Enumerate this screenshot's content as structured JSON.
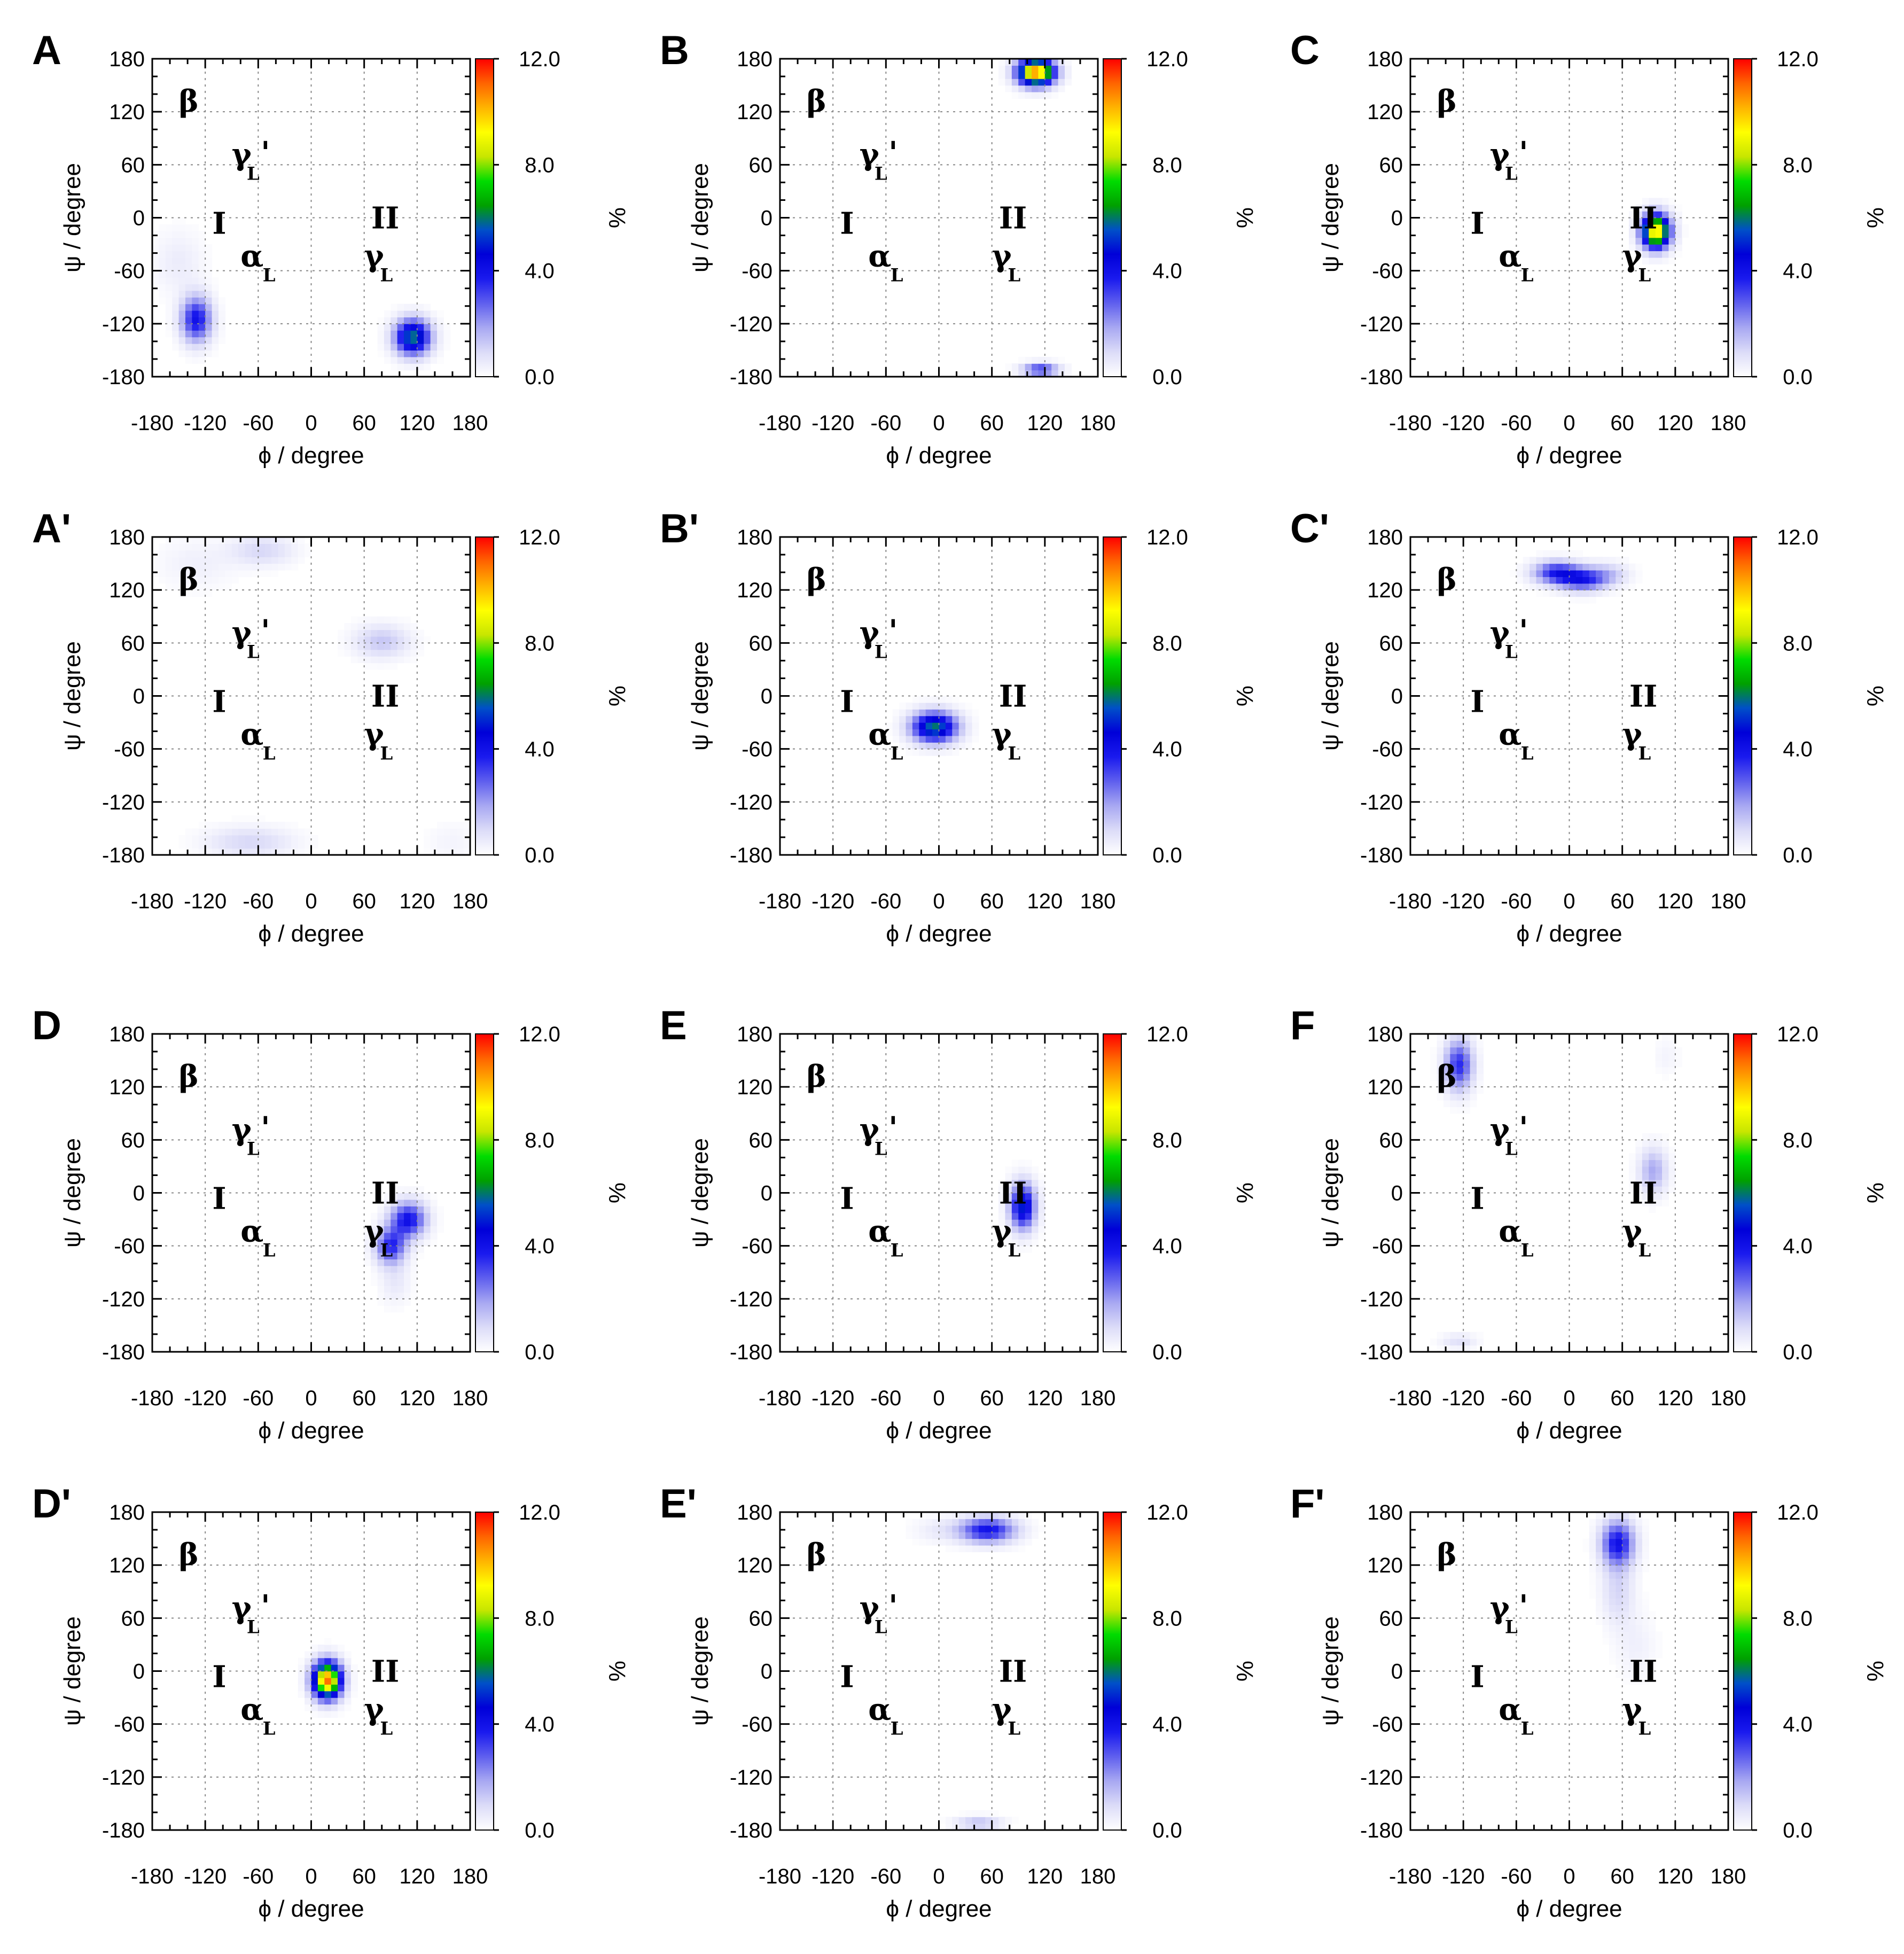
{
  "axis_text": {
    "x_label": "ϕ / degree",
    "y_label": "ψ / degree",
    "cbar_unit": "%"
  },
  "region_labels": {
    "beta": "β",
    "gamma_prime": "γ",
    "gamma_prime_sub": "L",
    "gamma_prime_mark": "'",
    "I": "I",
    "II": "II",
    "alpha": "α",
    "alpha_sub": "L",
    "gamma": "γ",
    "gamma_sub": "L"
  },
  "colorbar": {
    "ticks": [
      "12.0",
      "8.0",
      "4.0",
      "0.0"
    ],
    "colors": [
      "#ffffff",
      "#dcdcf8",
      "#a8a8f2",
      "#5f5fee",
      "#1a1aee",
      "#0000d8",
      "#0050c8",
      "#00a000",
      "#00dc00",
      "#c8e600",
      "#ffff00",
      "#ffb400",
      "#ff6400",
      "#ff0000"
    ]
  },
  "chart_data": [
    {
      "id": "A",
      "type": "heatmap",
      "title": "A",
      "xlabel": "ϕ / degree",
      "ylabel": "ψ / degree",
      "xlim": [
        -180,
        180
      ],
      "ylim": [
        -180,
        180
      ],
      "xticks": [
        "-180",
        "-120",
        "-60",
        "0",
        "60",
        "120",
        "180"
      ],
      "yticks": [
        "180",
        "120",
        "60",
        "0",
        "-60",
        "-120",
        "-180"
      ],
      "colorbar": {
        "label": "%",
        "range": [
          0,
          12
        ],
        "ticks": [
          "12.0",
          "8.0",
          "4.0",
          "0.0"
        ]
      },
      "grid": true,
      "hotspots": [
        {
          "phi": -130,
          "psi": -115,
          "sphi": 12,
          "spsi": 18,
          "peak": 4.0
        },
        {
          "phi": 115,
          "psi": -135,
          "sphi": 14,
          "spsi": 14,
          "peak": 6.0
        },
        {
          "phi": -150,
          "psi": -50,
          "sphi": 20,
          "spsi": 25,
          "peak": 0.5
        }
      ]
    },
    {
      "id": "B",
      "type": "heatmap",
      "title": "B",
      "xlabel": "ϕ / degree",
      "ylabel": "ψ / degree",
      "xlim": [
        -180,
        180
      ],
      "ylim": [
        -180,
        180
      ],
      "xticks": [
        "-180",
        "-120",
        "-60",
        "0",
        "60",
        "120",
        "180"
      ],
      "yticks": [
        "180",
        "120",
        "60",
        "0",
        "-60",
        "-120",
        "-180"
      ],
      "colorbar": {
        "label": "%",
        "range": [
          0,
          12
        ],
        "ticks": [
          "12.0",
          "8.0",
          "4.0",
          "0.0"
        ]
      },
      "grid": true,
      "hotspots": [
        {
          "phi": 110,
          "psi": 165,
          "sphi": 14,
          "spsi": 10,
          "peak": 11.0
        },
        {
          "phi": 115,
          "psi": -172,
          "sphi": 14,
          "spsi": 5,
          "peak": 3.5
        }
      ]
    },
    {
      "id": "C",
      "type": "heatmap",
      "title": "C",
      "xlabel": "ϕ / degree",
      "ylabel": "ψ / degree",
      "xlim": [
        -180,
        180
      ],
      "ylim": [
        -180,
        180
      ],
      "xticks": [
        "-180",
        "-120",
        "-60",
        "0",
        "60",
        "120",
        "180"
      ],
      "yticks": [
        "180",
        "120",
        "60",
        "0",
        "-60",
        "-120",
        "-180"
      ],
      "colorbar": {
        "label": "%",
        "range": [
          0,
          12
        ],
        "ticks": [
          "12.0",
          "8.0",
          "4.0",
          "0.0"
        ]
      },
      "grid": true,
      "hotspots": [
        {
          "phi": 98,
          "psi": -15,
          "sphi": 11,
          "spsi": 13,
          "peak": 10.0
        }
      ]
    },
    {
      "id": "A'",
      "type": "heatmap",
      "title": "A'",
      "xlabel": "ϕ / degree",
      "ylabel": "ψ / degree",
      "xlim": [
        -180,
        180
      ],
      "ylim": [
        -180,
        180
      ],
      "xticks": [
        "-180",
        "-120",
        "-60",
        "0",
        "60",
        "120",
        "180"
      ],
      "yticks": [
        "180",
        "120",
        "60",
        "0",
        "-60",
        "-120",
        "-180"
      ],
      "colorbar": {
        "label": "%",
        "range": [
          0,
          12
        ],
        "ticks": [
          "12.0",
          "8.0",
          "4.0",
          "0.0"
        ]
      },
      "grid": true,
      "hotspots": [
        {
          "phi": -55,
          "psi": 165,
          "sphi": 25,
          "spsi": 12,
          "peak": 1.0
        },
        {
          "phi": -70,
          "psi": -165,
          "sphi": 35,
          "spsi": 12,
          "peak": 1.0
        },
        {
          "phi": 80,
          "psi": 62,
          "sphi": 22,
          "spsi": 13,
          "peak": 1.3
        },
        {
          "phi": -130,
          "psi": 150,
          "sphi": 30,
          "spsi": 20,
          "peak": 0.4
        },
        {
          "phi": 160,
          "psi": -165,
          "sphi": 20,
          "spsi": 15,
          "peak": 0.3
        }
      ]
    },
    {
      "id": "B'",
      "type": "heatmap",
      "title": "B'",
      "xlabel": "ϕ / degree",
      "ylabel": "ψ / degree",
      "xlim": [
        -180,
        180
      ],
      "ylim": [
        -180,
        180
      ],
      "xticks": [
        "-180",
        "-120",
        "-60",
        "0",
        "60",
        "120",
        "180"
      ],
      "yticks": [
        "180",
        "120",
        "60",
        "0",
        "-60",
        "-120",
        "-180"
      ],
      "colorbar": {
        "label": "%",
        "range": [
          0,
          12
        ],
        "ticks": [
          "12.0",
          "8.0",
          "4.0",
          "0.0"
        ]
      },
      "grid": true,
      "hotspots": [
        {
          "phi": -5,
          "psi": -35,
          "sphi": 18,
          "spsi": 12,
          "peak": 6.0
        }
      ]
    },
    {
      "id": "C'",
      "type": "heatmap",
      "title": "C'",
      "xlabel": "ϕ / degree",
      "ylabel": "ψ / degree",
      "xlim": [
        -180,
        180
      ],
      "ylim": [
        -180,
        180
      ],
      "xticks": [
        "-180",
        "-120",
        "-60",
        "0",
        "60",
        "120",
        "180"
      ],
      "yticks": [
        "180",
        "120",
        "60",
        "0",
        "-60",
        "-120",
        "-180"
      ],
      "colorbar": {
        "label": "%",
        "range": [
          0,
          12
        ],
        "ticks": [
          "12.0",
          "8.0",
          "4.0",
          "0.0"
        ]
      },
      "grid": true,
      "hotspots": [
        {
          "phi": -15,
          "psi": 140,
          "sphi": 18,
          "spsi": 9,
          "peak": 3.5
        },
        {
          "phi": 15,
          "psi": 132,
          "sphi": 18,
          "spsi": 9,
          "peak": 3.5
        },
        {
          "phi": 45,
          "psi": 138,
          "sphi": 16,
          "spsi": 9,
          "peak": 1.2
        }
      ]
    },
    {
      "id": "D",
      "type": "heatmap",
      "title": "D",
      "xlabel": "ϕ / degree",
      "ylabel": "ψ / degree",
      "xlim": [
        -180,
        180
      ],
      "ylim": [
        -180,
        180
      ],
      "xticks": [
        "-180",
        "-120",
        "-60",
        "0",
        "60",
        "120",
        "180"
      ],
      "yticks": [
        "180",
        "120",
        "60",
        "0",
        "-60",
        "-120",
        "-180"
      ],
      "colorbar": {
        "label": "%",
        "range": [
          0,
          12
        ],
        "ticks": [
          "12.0",
          "8.0",
          "4.0",
          "0.0"
        ]
      },
      "grid": true,
      "hotspots": [
        {
          "phi": 110,
          "psi": -30,
          "sphi": 14,
          "spsi": 14,
          "peak": 4.0
        },
        {
          "phi": 90,
          "psi": -60,
          "sphi": 12,
          "spsi": 14,
          "peak": 3.5
        },
        {
          "phi": 95,
          "psi": -100,
          "sphi": 12,
          "spsi": 18,
          "peak": 0.6
        }
      ]
    },
    {
      "id": "E",
      "type": "heatmap",
      "title": "E",
      "xlabel": "ϕ / degree",
      "ylabel": "ψ / degree",
      "xlim": [
        -180,
        180
      ],
      "ylim": [
        -180,
        180
      ],
      "xticks": [
        "-180",
        "-120",
        "-60",
        "0",
        "60",
        "120",
        "180"
      ],
      "yticks": [
        "180",
        "120",
        "60",
        "0",
        "-60",
        "-120",
        "-180"
      ],
      "colorbar": {
        "label": "%",
        "range": [
          0,
          12
        ],
        "ticks": [
          "12.0",
          "8.0",
          "4.0",
          "0.0"
        ]
      },
      "grid": true,
      "hotspots": [
        {
          "phi": 95,
          "psi": -15,
          "sphi": 10,
          "spsi": 18,
          "peak": 5.0
        }
      ]
    },
    {
      "id": "F",
      "type": "heatmap",
      "title": "F",
      "xlabel": "ϕ / degree",
      "ylabel": "ψ / degree",
      "xlim": [
        -180,
        180
      ],
      "ylim": [
        -180,
        180
      ],
      "xticks": [
        "-180",
        "-120",
        "-60",
        "0",
        "60",
        "120",
        "180"
      ],
      "yticks": [
        "180",
        "120",
        "60",
        "0",
        "-60",
        "-120",
        "-180"
      ],
      "colorbar": {
        "label": "%",
        "range": [
          0,
          12
        ],
        "ticks": [
          "12.0",
          "8.0",
          "4.0",
          "0.0"
        ]
      },
      "grid": true,
      "hotspots": [
        {
          "phi": -125,
          "psi": 145,
          "sphi": 11,
          "spsi": 20,
          "peak": 3.5
        },
        {
          "phi": -125,
          "psi": -168,
          "sphi": 14,
          "spsi": 6,
          "peak": 0.8
        },
        {
          "phi": 95,
          "psi": 25,
          "sphi": 11,
          "spsi": 18,
          "peak": 1.8
        },
        {
          "phi": 110,
          "psi": 155,
          "sphi": 10,
          "spsi": 15,
          "peak": 0.3
        }
      ]
    },
    {
      "id": "D'",
      "type": "heatmap",
      "title": "D'",
      "xlabel": "ϕ / degree",
      "ylabel": "ψ / degree",
      "xlim": [
        -180,
        180
      ],
      "ylim": [
        -180,
        180
      ],
      "xticks": [
        "-180",
        "-120",
        "-60",
        "0",
        "60",
        "120",
        "180"
      ],
      "yticks": [
        "180",
        "120",
        "60",
        "0",
        "-60",
        "-120",
        "-180"
      ],
      "colorbar": {
        "label": "%",
        "range": [
          0,
          12
        ],
        "ticks": [
          "12.0",
          "8.0",
          "4.0",
          "0.0"
        ]
      },
      "grid": true,
      "hotspots": [
        {
          "phi": 18,
          "psi": -10,
          "sphi": 11,
          "spsi": 14,
          "peak": 11.0
        }
      ]
    },
    {
      "id": "E'",
      "type": "heatmap",
      "title": "E'",
      "xlabel": "ϕ / degree",
      "ylabel": "ψ / degree",
      "xlim": [
        -180,
        180
      ],
      "ylim": [
        -180,
        180
      ],
      "xticks": [
        "-180",
        "-120",
        "-60",
        "0",
        "60",
        "120",
        "180"
      ],
      "yticks": [
        "180",
        "120",
        "60",
        "0",
        "-60",
        "-120",
        "-180"
      ],
      "colorbar": {
        "label": "%",
        "range": [
          0,
          12
        ],
        "ticks": [
          "12.0",
          "8.0",
          "4.0",
          "0.0"
        ]
      },
      "grid": true,
      "hotspots": [
        {
          "phi": 55,
          "psi": 160,
          "sphi": 22,
          "spsi": 10,
          "peak": 4.0
        },
        {
          "phi": 0,
          "psi": 160,
          "sphi": 20,
          "spsi": 10,
          "peak": 0.5
        },
        {
          "phi": 45,
          "psi": -172,
          "sphi": 18,
          "spsi": 5,
          "peak": 1.5
        }
      ]
    },
    {
      "id": "F'",
      "type": "heatmap",
      "title": "F'",
      "xlabel": "ϕ / degree",
      "ylabel": "ψ / degree",
      "xlim": [
        -180,
        180
      ],
      "ylim": [
        -180,
        180
      ],
      "xticks": [
        "-180",
        "-120",
        "-60",
        "0",
        "60",
        "120",
        "180"
      ],
      "yticks": [
        "180",
        "120",
        "60",
        "0",
        "-60",
        "-120",
        "-180"
      ],
      "colorbar": {
        "label": "%",
        "range": [
          0,
          12
        ],
        "ticks": [
          "12.0",
          "8.0",
          "4.0",
          "0.0"
        ]
      },
      "grid": true,
      "hotspots": [
        {
          "phi": 55,
          "psi": 145,
          "sphi": 13,
          "spsi": 18,
          "peak": 4.0
        },
        {
          "phi": 55,
          "psi": 90,
          "sphi": 13,
          "spsi": 25,
          "peak": 1.0
        },
        {
          "phi": 75,
          "psi": 30,
          "sphi": 16,
          "spsi": 25,
          "peak": 0.4
        }
      ]
    }
  ]
}
